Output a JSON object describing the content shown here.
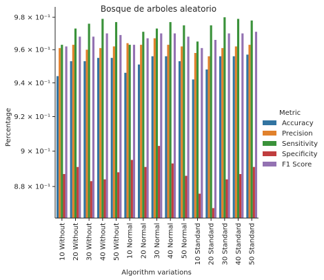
{
  "chart_data": {
    "type": "bar",
    "title": "Bosque de arboles aleatorio",
    "xlabel": "Algorithm variations",
    "ylabel": "Percentage",
    "y_scale": "log",
    "ylim": [
      0.8625,
      0.9865
    ],
    "y_ticks": [
      {
        "value": 0.88,
        "label": "8.8 × 10⁻¹"
      },
      {
        "value": 0.9,
        "label": "9 × 10⁻¹"
      },
      {
        "value": 0.92,
        "label": "9.2 × 10⁻¹"
      },
      {
        "value": 0.94,
        "label": "9.4 × 10⁻¹"
      },
      {
        "value": 0.96,
        "label": "9.6 × 10⁻¹"
      },
      {
        "value": 0.98,
        "label": "9.8 × 10⁻¹"
      }
    ],
    "grid": false,
    "legend_position": "right",
    "legend_title": "Metric",
    "categories": [
      "10 Without",
      "20 Without",
      "30 Without",
      "40 Without",
      "50 Without",
      "10 Normal",
      "20 Normal",
      "30 Normal",
      "40 Normal",
      "50 Normal",
      "10 Standard",
      "20 Standard",
      "30 Standard",
      "40 Standard",
      "50 Standard"
    ],
    "series": [
      {
        "name": "Accuracy",
        "color": "#3274a1",
        "values": [
          0.944,
          0.953,
          0.953,
          0.955,
          0.955,
          0.946,
          0.951,
          0.956,
          0.956,
          0.953,
          0.942,
          0.948,
          0.956,
          0.956,
          0.957
        ]
      },
      {
        "name": "Precision",
        "color": "#e1812c",
        "values": [
          0.961,
          0.963,
          0.96,
          0.961,
          0.962,
          0.964,
          0.963,
          0.967,
          0.963,
          0.962,
          0.958,
          0.956,
          0.961,
          0.962,
          0.963
        ]
      },
      {
        "name": "Sensitivity",
        "color": "#3a923a",
        "values": [
          0.963,
          0.973,
          0.976,
          0.979,
          0.977,
          0.963,
          0.971,
          0.973,
          0.977,
          0.975,
          0.965,
          0.975,
          0.98,
          0.979,
          0.978
        ]
      },
      {
        "name": "Specificity",
        "color": "#c03d3e",
        "values": [
          0.887,
          0.891,
          0.883,
          0.884,
          0.888,
          0.895,
          0.891,
          0.903,
          0.893,
          0.886,
          0.876,
          0.868,
          0.884,
          0.887,
          0.891
        ]
      },
      {
        "name": "F1 Score",
        "color": "#9372b2",
        "values": [
          0.962,
          0.968,
          0.968,
          0.97,
          0.969,
          0.963,
          0.967,
          0.97,
          0.97,
          0.968,
          0.961,
          0.966,
          0.97,
          0.97,
          0.971
        ]
      }
    ]
  }
}
